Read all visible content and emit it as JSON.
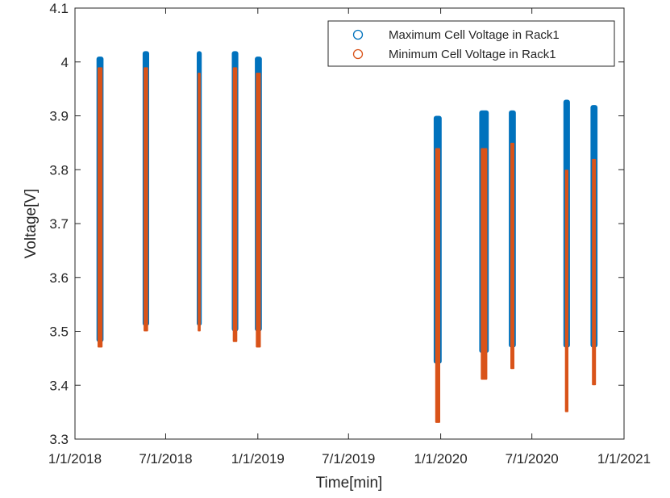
{
  "chart_data": {
    "type": "scatter",
    "title": "",
    "xlabel": "Time[min]",
    "ylabel": "Voltage[V]",
    "xlim": [
      "2018-01-01",
      "2021-01-01"
    ],
    "ylim": [
      3.3,
      4.1
    ],
    "x_ticks": [
      "1/1/2018",
      "7/1/2018",
      "1/1/2019",
      "7/1/2019",
      "1/1/2020",
      "7/1/2020",
      "1/1/2021"
    ],
    "y_ticks": [
      "3.3",
      "3.4",
      "3.5",
      "3.6",
      "3.7",
      "3.8",
      "3.9",
      "4",
      "4.1"
    ],
    "grid": false,
    "legend_position": "top-right",
    "series": [
      {
        "name": "Maximum Cell Voltage in Rack1",
        "color": "#0072BD",
        "marker": "circle",
        "bands": [
          {
            "start": "2018-02-13",
            "end": "2018-02-27",
            "min": 3.48,
            "max": 4.01
          },
          {
            "start": "2018-05-16",
            "end": "2018-05-29",
            "min": 3.51,
            "max": 4.02
          },
          {
            "start": "2018-09-01",
            "end": "2018-09-11",
            "min": 3.51,
            "max": 4.02
          },
          {
            "start": "2018-11-10",
            "end": "2018-11-23",
            "min": 3.5,
            "max": 4.02
          },
          {
            "start": "2018-12-26",
            "end": "2019-01-09",
            "min": 3.5,
            "max": 4.01
          },
          {
            "start": "2019-12-18",
            "end": "2020-01-03",
            "min": 3.44,
            "max": 3.9
          },
          {
            "start": "2020-03-18",
            "end": "2020-04-06",
            "min": 3.46,
            "max": 3.91
          },
          {
            "start": "2020-05-16",
            "end": "2020-05-30",
            "min": 3.47,
            "max": 3.91
          },
          {
            "start": "2020-09-02",
            "end": "2020-09-15",
            "min": 3.47,
            "max": 3.93
          },
          {
            "start": "2020-10-26",
            "end": "2020-11-09",
            "min": 3.47,
            "max": 3.92
          }
        ]
      },
      {
        "name": "Minimum Cell Voltage in Rack1",
        "color": "#D95319",
        "marker": "dot",
        "bands": [
          {
            "start": "2018-02-15",
            "end": "2018-02-25",
            "min": 3.47,
            "max": 3.99
          },
          {
            "start": "2018-05-18",
            "end": "2018-05-27",
            "min": 3.5,
            "max": 3.99
          },
          {
            "start": "2018-09-03",
            "end": "2018-09-09",
            "min": 3.5,
            "max": 3.98
          },
          {
            "start": "2018-11-12",
            "end": "2018-11-21",
            "min": 3.48,
            "max": 3.99
          },
          {
            "start": "2018-12-28",
            "end": "2019-01-07",
            "min": 3.47,
            "max": 3.98
          },
          {
            "start": "2019-12-21",
            "end": "2019-12-31",
            "min": 3.33,
            "max": 3.84
          },
          {
            "start": "2020-03-21",
            "end": "2020-04-03",
            "min": 3.41,
            "max": 3.84
          },
          {
            "start": "2020-05-19",
            "end": "2020-05-27",
            "min": 3.43,
            "max": 3.85
          },
          {
            "start": "2020-09-05",
            "end": "2020-09-12",
            "min": 3.35,
            "max": 3.8
          },
          {
            "start": "2020-10-29",
            "end": "2020-11-06",
            "min": 3.4,
            "max": 3.82
          }
        ]
      }
    ]
  }
}
